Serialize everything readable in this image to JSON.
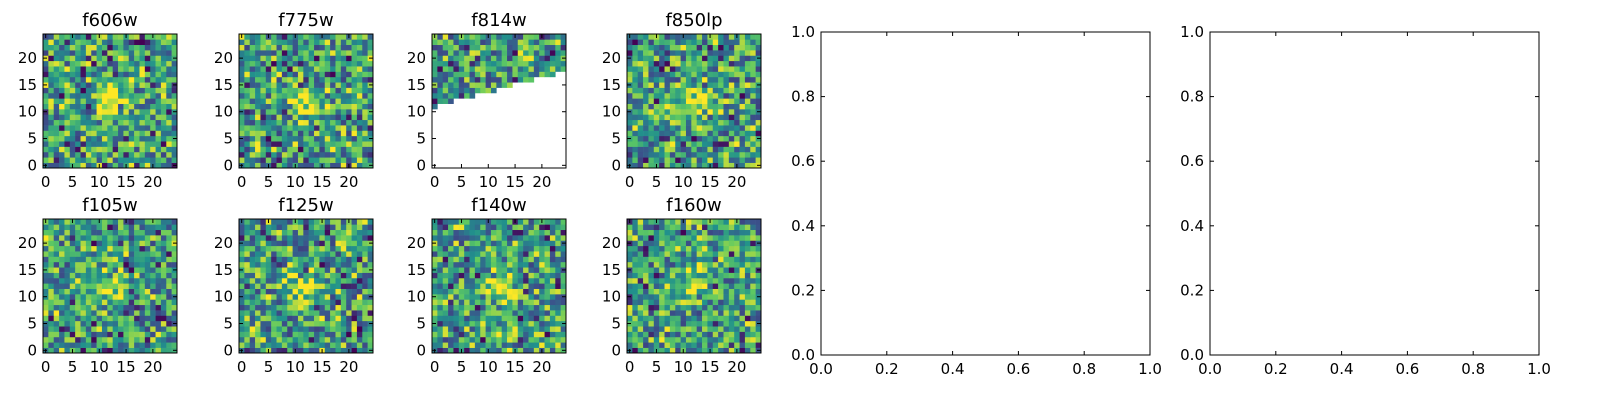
{
  "figure": {
    "background": "#ffffff",
    "colormap": [
      "#440154",
      "#3b528b",
      "#21918c",
      "#5ec962",
      "#fde725"
    ],
    "masked_color": "#ffffff"
  },
  "chart_data": [
    {
      "type": "heatmap",
      "title": "f606w",
      "xticks": [
        "0",
        "5",
        "10",
        "15",
        "20"
      ],
      "yticks": [
        "0",
        "5",
        "10",
        "15",
        "20"
      ],
      "xlim": [
        -0.5,
        24.5
      ],
      "ylim": [
        -0.5,
        24.5
      ],
      "grid": false,
      "source_blob": [
        12,
        12
      ],
      "seed": 11
    },
    {
      "type": "heatmap",
      "title": "f775w",
      "xticks": [
        "0",
        "5",
        "10",
        "15",
        "20"
      ],
      "yticks": [
        "0",
        "5",
        "10",
        "15",
        "20"
      ],
      "xlim": [
        -0.5,
        24.5
      ],
      "ylim": [
        -0.5,
        24.5
      ],
      "grid": false,
      "source_blob": [
        12,
        12
      ],
      "seed": 23
    },
    {
      "type": "heatmap",
      "title": "f814w",
      "xticks": [
        "0",
        "5",
        "10",
        "15",
        "20"
      ],
      "yticks": [
        "0",
        "5",
        "10",
        "15",
        "20"
      ],
      "xlim": [
        -0.5,
        24.5
      ],
      "ylim": [
        -0.5,
        24.5
      ],
      "grid": false,
      "masked_region": "lower-right (no coverage)",
      "seed": 37
    },
    {
      "type": "heatmap",
      "title": "f850lp",
      "xticks": [
        "0",
        "5",
        "10",
        "15",
        "20"
      ],
      "yticks": [
        "0",
        "5",
        "10",
        "15",
        "20"
      ],
      "xlim": [
        -0.5,
        24.5
      ],
      "ylim": [
        -0.5,
        24.5
      ],
      "grid": false,
      "source_blob": [
        12,
        12
      ],
      "seed": 41
    },
    {
      "type": "empty",
      "title": "",
      "xticks": [
        "0.0",
        "0.2",
        "0.4",
        "0.6",
        "0.8",
        "1.0"
      ],
      "yticks": [
        "0.0",
        "0.2",
        "0.4",
        "0.6",
        "0.8",
        "1.0"
      ],
      "xlim": [
        0,
        1
      ],
      "ylim": [
        0,
        1
      ],
      "grid": false
    },
    {
      "type": "empty",
      "title": "",
      "xticks": [
        "0.0",
        "0.2",
        "0.4",
        "0.6",
        "0.8",
        "1.0"
      ],
      "yticks": [
        "0.0",
        "0.2",
        "0.4",
        "0.6",
        "0.8",
        "1.0"
      ],
      "xlim": [
        0,
        1
      ],
      "ylim": [
        0,
        1
      ],
      "grid": false
    },
    {
      "type": "heatmap",
      "title": "f105w",
      "xticks": [
        "0",
        "5",
        "10",
        "15",
        "20"
      ],
      "yticks": [
        "0",
        "5",
        "10",
        "15",
        "20"
      ],
      "xlim": [
        -0.5,
        24.5
      ],
      "ylim": [
        -0.5,
        24.5
      ],
      "grid": false,
      "source_blob": [
        12,
        12
      ],
      "seed": 53
    },
    {
      "type": "heatmap",
      "title": "f125w",
      "xticks": [
        "0",
        "5",
        "10",
        "15",
        "20"
      ],
      "yticks": [
        "0",
        "5",
        "10",
        "15",
        "20"
      ],
      "xlim": [
        -0.5,
        24.5
      ],
      "ylim": [
        -0.5,
        24.5
      ],
      "grid": false,
      "source_blob": [
        12,
        12
      ],
      "seed": 67
    },
    {
      "type": "heatmap",
      "title": "f140w",
      "xticks": [
        "0",
        "5",
        "10",
        "15",
        "20"
      ],
      "yticks": [
        "0",
        "5",
        "10",
        "15",
        "20"
      ],
      "xlim": [
        -0.5,
        24.5
      ],
      "ylim": [
        -0.5,
        24.5
      ],
      "grid": false,
      "source_blob": [
        12,
        12
      ],
      "seed": 79
    },
    {
      "type": "heatmap",
      "title": "f160w",
      "xticks": [
        "0",
        "5",
        "10",
        "15",
        "20"
      ],
      "yticks": [
        "0",
        "5",
        "10",
        "15",
        "20"
      ],
      "xlim": [
        -0.5,
        24.5
      ],
      "ylim": [
        -0.5,
        24.5
      ],
      "grid": false,
      "source_blob": [
        12,
        12
      ],
      "seed": 97
    }
  ]
}
